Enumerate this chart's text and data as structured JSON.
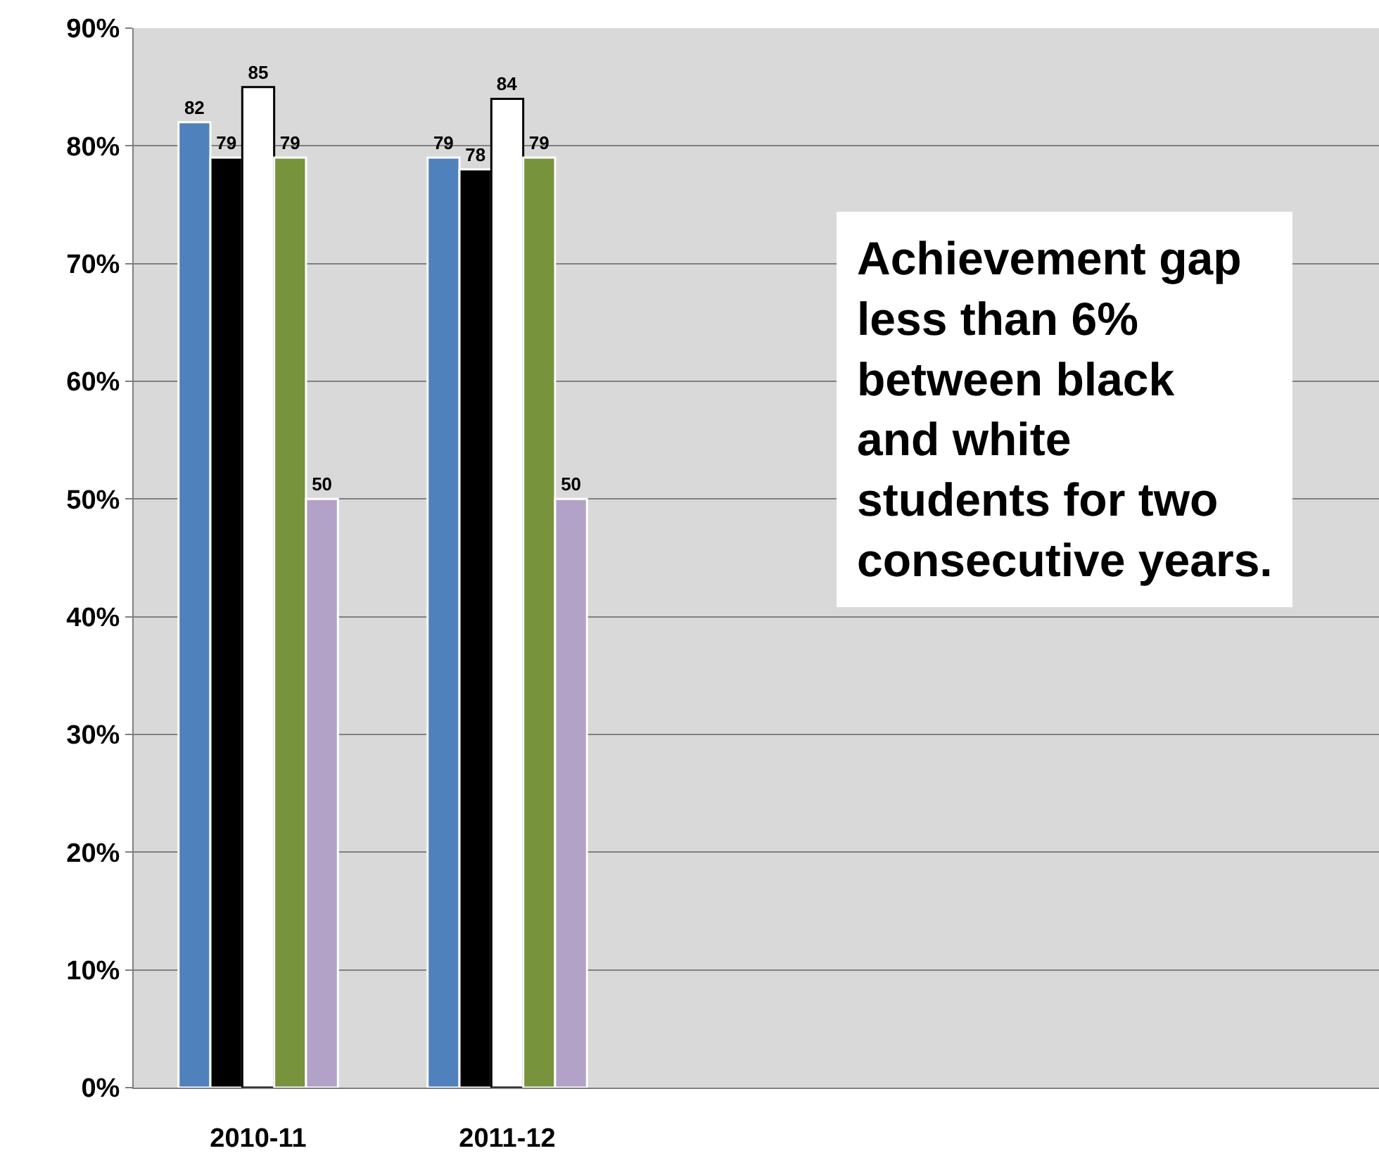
{
  "chart_data": {
    "type": "bar",
    "categories": [
      "2010-11",
      "2011-12",
      null,
      null,
      null
    ],
    "series": [
      {
        "color": "#4f81bd",
        "values": [
          82,
          79,
          null,
          null,
          null
        ]
      },
      {
        "color": "#000000",
        "values": [
          79,
          78,
          null,
          null,
          null
        ]
      },
      {
        "color": "#ffffff",
        "values": [
          85,
          84,
          null,
          null,
          null
        ]
      },
      {
        "color": "#77933c",
        "values": [
          79,
          79,
          null,
          null,
          null
        ]
      },
      {
        "color": "#b3a2c7",
        "values": [
          50,
          50,
          null,
          null,
          null
        ]
      }
    ],
    "ylim": [
      0,
      90
    ],
    "yticks": [
      {
        "value": 0,
        "label": "0%"
      },
      {
        "value": 10,
        "label": "10%"
      },
      {
        "value": 20,
        "label": "20%"
      },
      {
        "value": 30,
        "label": "30%"
      },
      {
        "value": 40,
        "label": "40%"
      },
      {
        "value": 50,
        "label": "50%"
      },
      {
        "value": 60,
        "label": "60%"
      },
      {
        "value": 70,
        "label": "70%"
      },
      {
        "value": 80,
        "label": "80%"
      },
      {
        "value": 90,
        "label": "90%"
      }
    ],
    "grid": "y",
    "data_labels": true,
    "annotations": [
      "Achievement gap\nless than 6%\nbetween black\nand white\nstudents for two\nconsecutive years."
    ]
  }
}
